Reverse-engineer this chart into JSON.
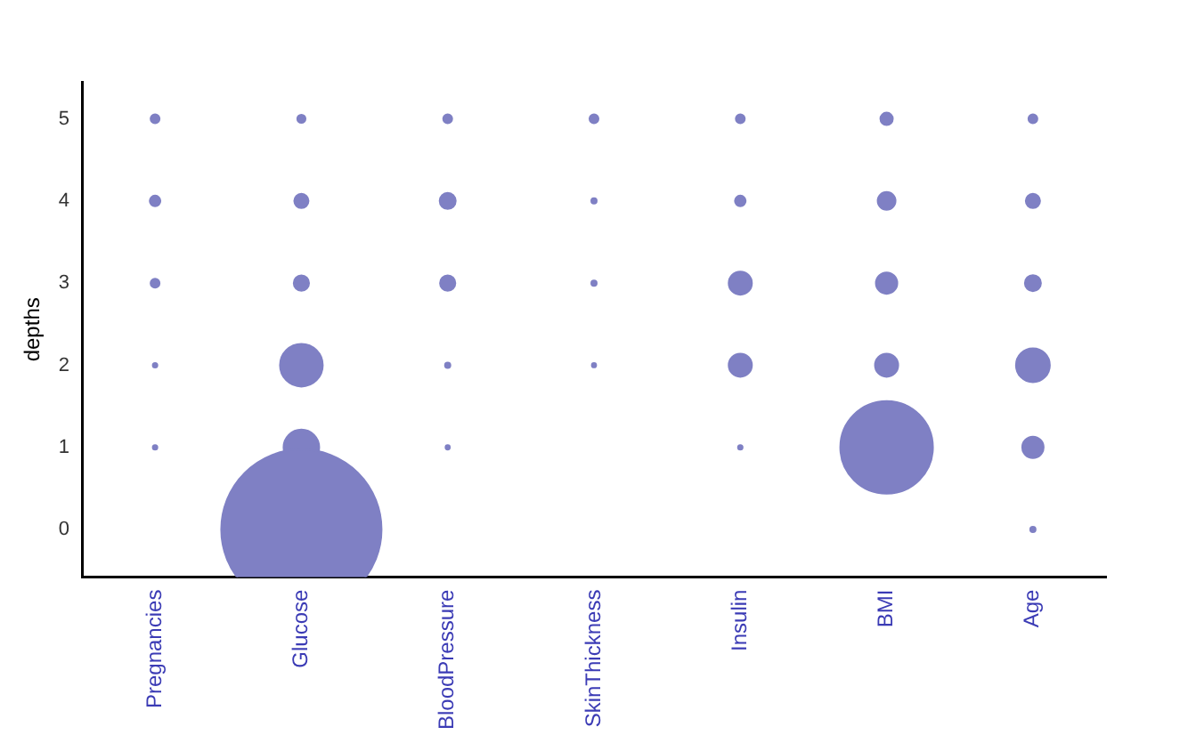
{
  "chart_data": {
    "type": "bubble",
    "ylabel": "depths",
    "categories": [
      "Pregnancies",
      "Glucose",
      "BloodPressure",
      "SkinThickness",
      "Insulin",
      "BMI",
      "Age"
    ],
    "ylim": [
      -0.58,
      5.45
    ],
    "yticks": [
      0,
      1,
      2,
      3,
      4,
      5
    ],
    "grid": false,
    "legend": false,
    "series": [
      {
        "color": "#7f80c4",
        "x": [
          "Pregnancies",
          "Pregnancies",
          "Pregnancies",
          "Pregnancies",
          "Pregnancies",
          "Glucose",
          "Glucose",
          "Glucose",
          "Glucose",
          "Glucose",
          "Glucose",
          "BloodPressure",
          "BloodPressure",
          "BloodPressure",
          "BloodPressure",
          "BloodPressure",
          "SkinThickness",
          "SkinThickness",
          "SkinThickness",
          "SkinThickness",
          "Insulin",
          "Insulin",
          "Insulin",
          "Insulin",
          "Insulin",
          "BMI",
          "BMI",
          "BMI",
          "BMI",
          "BMI",
          "Age",
          "Age",
          "Age",
          "Age",
          "Age",
          "Age"
        ],
        "values": [
          5,
          4,
          3,
          2,
          1,
          5,
          4,
          3,
          2,
          1,
          0,
          5,
          4,
          3,
          2,
          1,
          5,
          4,
          3,
          2,
          5,
          4,
          3,
          2,
          1,
          5,
          4,
          3,
          2,
          1,
          5,
          4,
          3,
          2,
          1,
          0
        ],
        "sizes": [
          0.0031,
          0.0044,
          0.0031,
          0.0008,
          0.0008,
          0.0026,
          0.0079,
          0.0091,
          0.0711,
          0.0494,
          1,
          0.0031,
          0.01,
          0.0091,
          0.0011,
          0.0007,
          0.0031,
          0.0011,
          0.0011,
          0.0007,
          0.0031,
          0.0044,
          0.0209,
          0.0209,
          0.0008,
          0.006,
          0.0123,
          0.0178,
          0.0209,
          0.3338,
          0.0031,
          0.0079,
          0.01,
          0.0446,
          0.0178,
          0.0011
        ]
      }
    ]
  }
}
